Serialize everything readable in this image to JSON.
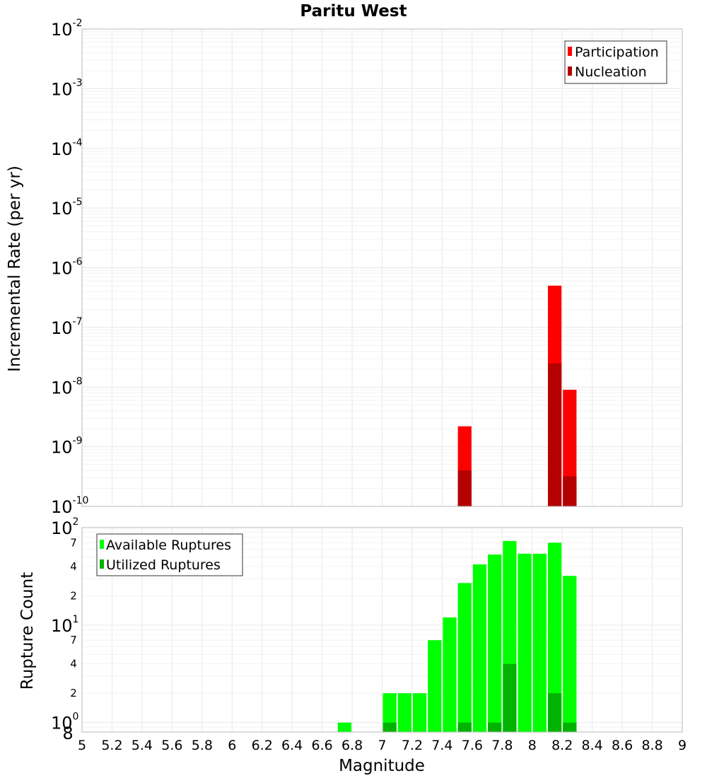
{
  "chart_data": [
    {
      "type": "bar",
      "title": "Paritu West",
      "ylabel": "Incremental Rate (per yr)",
      "yscale": "log",
      "ylim": [
        1e-10,
        0.01
      ],
      "xlim": [
        5,
        9
      ],
      "y_ticks": [
        {
          "base": "10",
          "exp": "-10",
          "value": 1e-10
        },
        {
          "base": "10",
          "exp": "-9",
          "value": 1e-09
        },
        {
          "base": "10",
          "exp": "-8",
          "value": 1e-08
        },
        {
          "base": "10",
          "exp": "-7",
          "value": 1e-07
        },
        {
          "base": "10",
          "exp": "-6",
          "value": 1e-06
        },
        {
          "base": "10",
          "exp": "-5",
          "value": 1e-05
        },
        {
          "base": "10",
          "exp": "-4",
          "value": 0.0001
        },
        {
          "base": "10",
          "exp": "-3",
          "value": 0.001
        },
        {
          "base": "10",
          "exp": "-2",
          "value": 0.01
        }
      ],
      "legend_position": "top-right",
      "series": [
        {
          "name": "Participation",
          "color": "#ff0000",
          "points": [
            {
              "x": 7.55,
              "y": 2.2e-09
            },
            {
              "x": 8.15,
              "y": 5e-07
            },
            {
              "x": 8.25,
              "y": 9e-09
            }
          ]
        },
        {
          "name": "Nucleation",
          "color": "#b30000",
          "points": [
            {
              "x": 7.55,
              "y": 4e-10
            },
            {
              "x": 8.15,
              "y": 2.5e-08
            },
            {
              "x": 8.25,
              "y": 3.2e-10
            }
          ]
        }
      ]
    },
    {
      "type": "bar",
      "xlabel": "Magnitude",
      "ylabel": "Rupture Count",
      "yscale": "log",
      "ylim": [
        0.8,
        100
      ],
      "xlim": [
        5,
        9
      ],
      "x_ticks": [
        "5",
        "5.2",
        "5.4",
        "5.6",
        "5.8",
        "6",
        "6.2",
        "6.4",
        "6.6",
        "6.8",
        "7",
        "7.2",
        "7.4",
        "7.6",
        "7.8",
        "8",
        "8.2",
        "8.4",
        "8.6",
        "8.8",
        "9"
      ],
      "y_major_ticks": [
        {
          "base": "10",
          "exp": "0",
          "value": 1
        },
        {
          "base": "10",
          "exp": "1",
          "value": 10
        },
        {
          "base": "10",
          "exp": "2",
          "value": 100
        }
      ],
      "y_minor_ticks": [
        {
          "label": "8",
          "value": 0.8
        },
        {
          "label": "2",
          "value": 2
        },
        {
          "label": "4",
          "value": 4
        },
        {
          "label": "7",
          "value": 7
        },
        {
          "label": "2",
          "value": 20
        },
        {
          "label": "4",
          "value": 40
        },
        {
          "label": "7",
          "value": 70
        }
      ],
      "legend_position": "top-left",
      "series": [
        {
          "name": "Available Ruptures",
          "color": "#00ff00",
          "points": [
            {
              "x": 6.75,
              "y": 1
            },
            {
              "x": 7.05,
              "y": 2
            },
            {
              "x": 7.15,
              "y": 2
            },
            {
              "x": 7.25,
              "y": 2
            },
            {
              "x": 7.35,
              "y": 7
            },
            {
              "x": 7.45,
              "y": 12
            },
            {
              "x": 7.55,
              "y": 27
            },
            {
              "x": 7.65,
              "y": 42
            },
            {
              "x": 7.75,
              "y": 53
            },
            {
              "x": 7.85,
              "y": 73
            },
            {
              "x": 7.95,
              "y": 54
            },
            {
              "x": 8.05,
              "y": 54
            },
            {
              "x": 8.15,
              "y": 70
            },
            {
              "x": 8.25,
              "y": 32
            }
          ]
        },
        {
          "name": "Utilized Ruptures",
          "color": "#00b300",
          "points": [
            {
              "x": 7.05,
              "y": 1
            },
            {
              "x": 7.55,
              "y": 1
            },
            {
              "x": 7.75,
              "y": 1
            },
            {
              "x": 7.85,
              "y": 4
            },
            {
              "x": 8.15,
              "y": 2
            },
            {
              "x": 8.25,
              "y": 1
            }
          ]
        }
      ]
    }
  ]
}
